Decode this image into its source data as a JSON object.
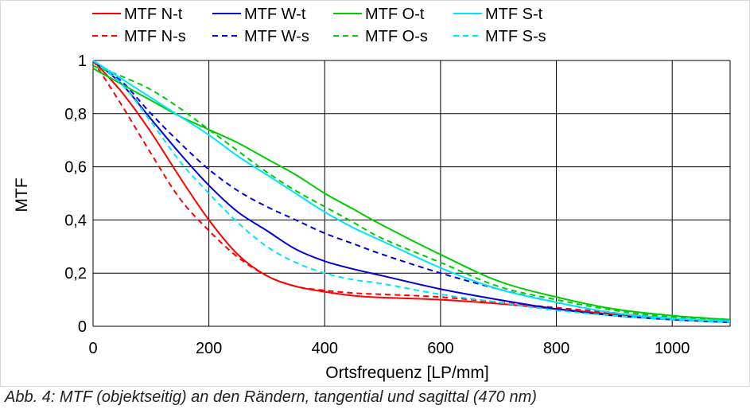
{
  "caption": "Abb. 4: MTF (objektseitig) an den Rändern, tangential und sagittal (470 nm)",
  "chart_data": {
    "type": "line",
    "title": "",
    "xlabel": "Ortsfrequenz [LP/mm]",
    "ylabel": "MTF",
    "xlim": [
      0,
      1100
    ],
    "ylim": [
      0,
      1
    ],
    "xticks": [
      0,
      200,
      400,
      600,
      800,
      1000
    ],
    "xtick_labels": [
      "0",
      "200",
      "400",
      "600",
      "800",
      "1000"
    ],
    "yticks": [
      0,
      0.2,
      0.4,
      0.6,
      0.8,
      1
    ],
    "ytick_labels": [
      "0",
      "0,2",
      "0,4",
      "0,6",
      "0,8",
      "1"
    ],
    "grid": true,
    "legend": "top",
    "series": [
      {
        "name": "MTF N-t",
        "color": "#ff0000",
        "dash": "solid",
        "x": [
          0,
          50,
          100,
          150,
          200,
          250,
          300,
          350,
          400,
          450,
          500,
          600,
          700,
          800,
          900,
          1000,
          1100
        ],
        "y": [
          1.0,
          0.88,
          0.73,
          0.56,
          0.4,
          0.27,
          0.19,
          0.15,
          0.13,
          0.115,
          0.108,
          0.1,
          0.085,
          0.065,
          0.045,
          0.025,
          0.015
        ]
      },
      {
        "name": "MTF N-s",
        "color": "#ff0000",
        "dash": "dashed",
        "x": [
          0,
          50,
          100,
          150,
          200,
          250,
          300,
          350,
          400,
          450,
          500,
          600,
          700,
          800,
          900,
          1000,
          1100
        ],
        "y": [
          1.0,
          0.83,
          0.65,
          0.48,
          0.36,
          0.26,
          0.19,
          0.15,
          0.135,
          0.125,
          0.12,
          0.11,
          0.09,
          0.07,
          0.05,
          0.03,
          0.015
        ]
      },
      {
        "name": "MTF W-t",
        "color": "#0000dd",
        "dash": "solid",
        "x": [
          0,
          50,
          100,
          150,
          200,
          250,
          300,
          350,
          400,
          450,
          500,
          600,
          700,
          800,
          900,
          1000,
          1100
        ],
        "y": [
          1.0,
          0.91,
          0.78,
          0.65,
          0.53,
          0.43,
          0.36,
          0.29,
          0.245,
          0.215,
          0.19,
          0.14,
          0.1,
          0.065,
          0.04,
          0.025,
          0.015
        ]
      },
      {
        "name": "MTF W-s",
        "color": "#0000dd",
        "dash": "dashed",
        "x": [
          0,
          50,
          100,
          150,
          200,
          250,
          300,
          350,
          400,
          450,
          500,
          600,
          700,
          800,
          900,
          1000,
          1100
        ],
        "y": [
          1.0,
          0.92,
          0.8,
          0.69,
          0.59,
          0.51,
          0.45,
          0.4,
          0.35,
          0.31,
          0.27,
          0.2,
          0.14,
          0.09,
          0.05,
          0.03,
          0.015
        ]
      },
      {
        "name": "MTF O-t",
        "color": "#00cc00",
        "dash": "solid",
        "x": [
          0,
          50,
          100,
          150,
          200,
          250,
          300,
          350,
          400,
          450,
          500,
          600,
          700,
          800,
          900,
          1000,
          1100
        ],
        "y": [
          0.97,
          0.91,
          0.85,
          0.79,
          0.74,
          0.69,
          0.63,
          0.57,
          0.5,
          0.44,
          0.38,
          0.27,
          0.17,
          0.11,
          0.065,
          0.04,
          0.025
        ]
      },
      {
        "name": "MTF O-s",
        "color": "#00cc00",
        "dash": "dashed",
        "x": [
          0,
          50,
          100,
          150,
          200,
          250,
          300,
          350,
          400,
          450,
          500,
          600,
          700,
          800,
          900,
          1000,
          1100
        ],
        "y": [
          0.98,
          0.94,
          0.89,
          0.82,
          0.74,
          0.66,
          0.58,
          0.51,
          0.45,
          0.39,
          0.33,
          0.24,
          0.15,
          0.1,
          0.06,
          0.035,
          0.025
        ]
      },
      {
        "name": "MTF S-t",
        "color": "#00e5ff",
        "dash": "solid",
        "x": [
          0,
          50,
          100,
          150,
          200,
          250,
          300,
          350,
          400,
          450,
          500,
          600,
          700,
          800,
          900,
          1000,
          1100
        ],
        "y": [
          1.0,
          0.93,
          0.86,
          0.79,
          0.72,
          0.64,
          0.57,
          0.5,
          0.43,
          0.37,
          0.32,
          0.22,
          0.14,
          0.09,
          0.05,
          0.03,
          0.02
        ]
      },
      {
        "name": "MTF S-s",
        "color": "#00e5ff",
        "dash": "dashed",
        "x": [
          0,
          50,
          100,
          150,
          200,
          250,
          300,
          350,
          400,
          450,
          500,
          600,
          700,
          800,
          900,
          1000,
          1100
        ],
        "y": [
          1.0,
          0.91,
          0.77,
          0.62,
          0.5,
          0.39,
          0.3,
          0.24,
          0.2,
          0.175,
          0.16,
          0.12,
          0.09,
          0.06,
          0.04,
          0.025,
          0.015
        ]
      }
    ]
  }
}
